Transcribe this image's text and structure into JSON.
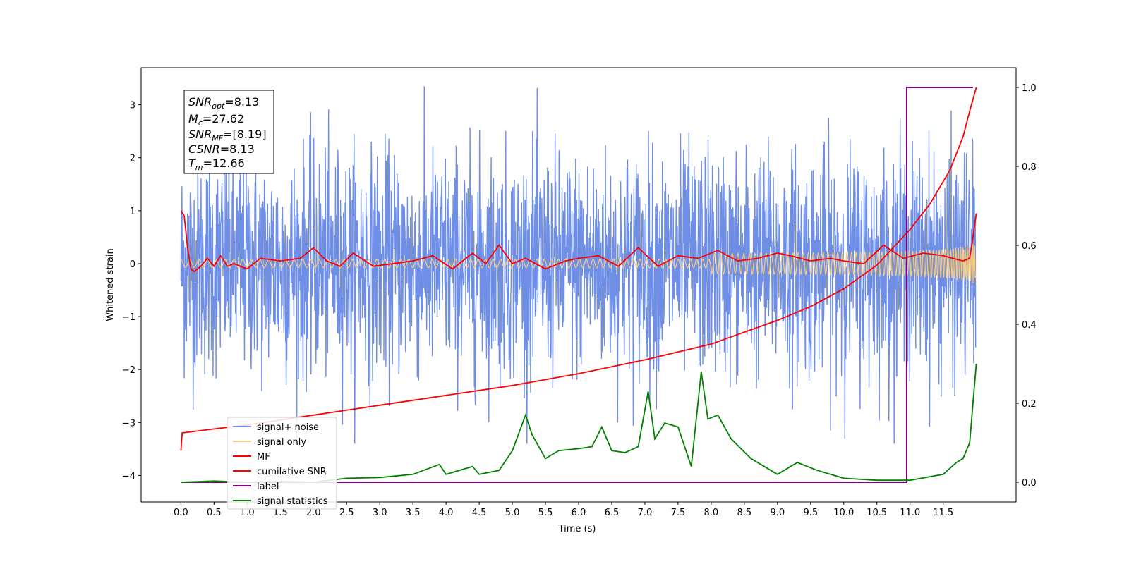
{
  "chart_data": {
    "type": "line",
    "title": "",
    "xlabel": "Time (s)",
    "ylabel": "Whitened strain",
    "xlim": [
      -0.6,
      12.6
    ],
    "ylim": [
      -4.5,
      3.7
    ],
    "y2lim": [
      -0.05,
      1.05
    ],
    "x_ticks": [
      "0.0",
      "0.5",
      "1.0",
      "1.5",
      "2.0",
      "2.5",
      "3.0",
      "3.5",
      "4.0",
      "4.5",
      "5.0",
      "5.5",
      "6.0",
      "6.5",
      "7.0",
      "7.5",
      "8.0",
      "8.5",
      "9.0",
      "9.5",
      "10.0",
      "10.5",
      "11.0",
      "11.5"
    ],
    "y_ticks": [
      "3",
      "2",
      "1",
      "0",
      "−1",
      "−2",
      "−3",
      "−4"
    ],
    "y_tick_values": [
      3,
      2,
      1,
      0,
      -1,
      -2,
      -3,
      -4
    ],
    "y2_ticks": [
      "1.0",
      "0.8",
      "0.6",
      "0.4",
      "0.2",
      "0.0"
    ],
    "y2_tick_values": [
      1.0,
      0.8,
      0.6,
      0.4,
      0.2,
      0.0
    ],
    "legend": [
      "signal+ noise",
      "signal only",
      "MF",
      "cumilative SNR",
      "label",
      "signal statistics"
    ],
    "legend_position": "lower-left",
    "colors": {
      "signal_noise": "#6f8fe6",
      "signal_only": "#f5c97a",
      "mf": "#ff0000",
      "cumulative_snr": "#ff0000",
      "label": "#800080",
      "signal_statistics": "#008000"
    },
    "annotation": {
      "snr_opt_base": "SNR",
      "snr_opt_sub": "opt",
      "snr_opt_value": "=8.13",
      "mc_base": "M",
      "mc_sub": "c",
      "mc_value": "=27.62",
      "snr_mf_base": "SNR",
      "snr_mf_sub": "MF",
      "snr_mf_value": "=[8.19]",
      "csnr_base": "CSNR",
      "csnr_value": "=8.13",
      "tm_base": "T",
      "tm_sub": "m",
      "tm_value": "=12.66"
    },
    "series": [
      {
        "name": "signal+ noise",
        "axis": "left",
        "x_range": [
          0.0,
          11.99
        ],
        "amplitude_range": [
          -3.4,
          3.35
        ]
      },
      {
        "name": "signal only",
        "axis": "left",
        "x_range": [
          0.0,
          11.99
        ],
        "amplitude_range": [
          -0.4,
          0.4
        ]
      },
      {
        "name": "MF",
        "axis": "left",
        "x": [
          0,
          0.05,
          0.1,
          0.15,
          0.2,
          0.3,
          0.4,
          0.5,
          0.6,
          0.7,
          0.8,
          1.0,
          1.2,
          1.5,
          1.8,
          2.0,
          2.2,
          2.4,
          2.6,
          2.9,
          3.2,
          3.5,
          3.8,
          4.1,
          4.4,
          4.6,
          4.8,
          5.0,
          5.2,
          5.5,
          5.8,
          6.0,
          6.3,
          6.6,
          6.9,
          7.2,
          7.5,
          7.8,
          8.1,
          8.4,
          8.7,
          9.0,
          9.2,
          9.5,
          9.8,
          10.0,
          10.3,
          10.6,
          10.9,
          11.2,
          11.5,
          11.8,
          11.9,
          11.95,
          12.0
        ],
        "y": [
          1.0,
          0.9,
          0.3,
          -0.1,
          -0.15,
          -0.05,
          0.1,
          -0.05,
          0.15,
          -0.05,
          0.0,
          -0.1,
          0.1,
          0.05,
          0.1,
          0.3,
          0.05,
          -0.05,
          0.2,
          -0.05,
          0.0,
          0.05,
          0.15,
          -0.1,
          0.2,
          0.0,
          0.35,
          0.0,
          0.1,
          -0.1,
          0.05,
          0.1,
          0.15,
          -0.05,
          0.3,
          -0.05,
          0.15,
          0.1,
          0.25,
          0.05,
          0.1,
          0.2,
          0.15,
          0.05,
          0.1,
          0.05,
          0.0,
          0.35,
          0.1,
          0.2,
          0.15,
          0.05,
          0.1,
          0.5,
          0.95
        ]
      },
      {
        "name": "cumilative SNR",
        "axis": "right",
        "x": [
          0,
          0.02,
          0.5,
          1,
          2,
          3,
          4,
          5,
          6,
          7,
          8,
          9,
          9.5,
          10,
          10.5,
          11,
          11.3,
          11.6,
          11.8,
          11.9,
          12.0
        ],
        "y": [
          0.08,
          0.125,
          0.135,
          0.145,
          0.17,
          0.195,
          0.22,
          0.245,
          0.275,
          0.31,
          0.35,
          0.41,
          0.445,
          0.49,
          0.55,
          0.64,
          0.705,
          0.79,
          0.875,
          0.94,
          1.0
        ]
      },
      {
        "name": "label",
        "axis": "right",
        "x": [
          0,
          10.9,
          10.9,
          10.95,
          10.95,
          11.95
        ],
        "y": [
          0.0,
          0.0,
          0.0,
          0.0,
          1.0,
          1.0
        ]
      },
      {
        "name": "signal statistics",
        "axis": "right",
        "x": [
          0,
          0.5,
          1,
          1.5,
          2,
          2.5,
          3,
          3.5,
          3.9,
          4.0,
          4.2,
          4.4,
          4.5,
          4.8,
          5.0,
          5.2,
          5.3,
          5.5,
          5.7,
          6.0,
          6.2,
          6.35,
          6.5,
          6.7,
          6.9,
          7.05,
          7.15,
          7.3,
          7.5,
          7.7,
          7.85,
          7.95,
          8.1,
          8.3,
          8.6,
          9.0,
          9.3,
          9.6,
          10.0,
          10.5,
          11.0,
          11.5,
          11.7,
          11.8,
          11.9,
          12.0
        ],
        "y": [
          0.0,
          0.003,
          0.0,
          0.002,
          0.0,
          0.01,
          0.012,
          0.02,
          0.045,
          0.02,
          0.03,
          0.04,
          0.02,
          0.03,
          0.08,
          0.17,
          0.12,
          0.06,
          0.08,
          0.085,
          0.09,
          0.14,
          0.08,
          0.075,
          0.09,
          0.23,
          0.11,
          0.15,
          0.14,
          0.04,
          0.28,
          0.16,
          0.17,
          0.11,
          0.06,
          0.02,
          0.05,
          0.03,
          0.01,
          0.005,
          0.005,
          0.02,
          0.05,
          0.06,
          0.1,
          0.3
        ]
      }
    ]
  }
}
